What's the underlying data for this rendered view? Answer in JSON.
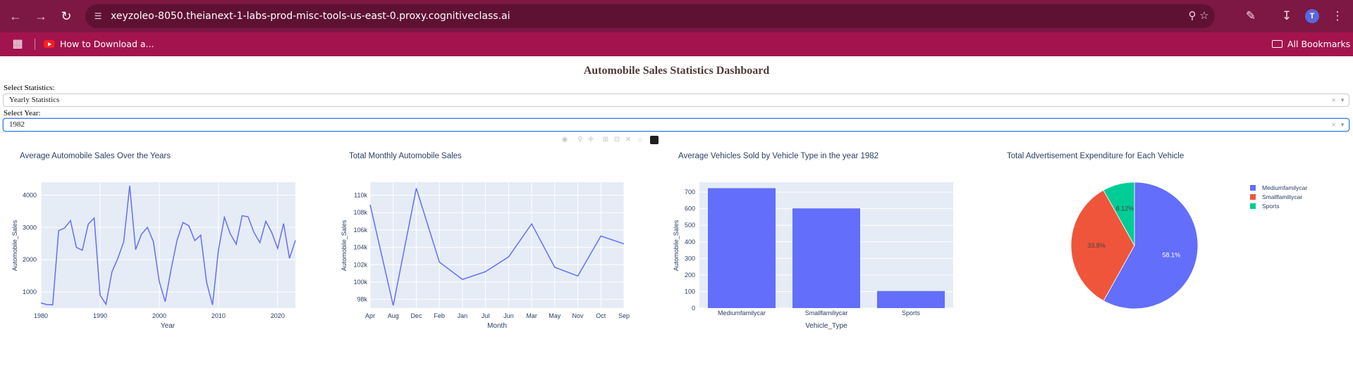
{
  "browser": {
    "url": "xeyzoleo-8050.theianext-1-labs-prod-misc-tools-us-east-0.proxy.cognitiveclass.ai",
    "profile_initial": "T",
    "bookmarks": [
      "How to Download a..."
    ],
    "all_bookmarks_label": "All Bookmarks",
    "icons": {
      "back": "back-arrow-icon",
      "forward": "forward-arrow-icon",
      "reload": "reload-icon",
      "site_info": "tune-icon",
      "zoom": "zoom-icon",
      "star": "star-icon",
      "extensions": "puzzle-icon",
      "download": "download-icon",
      "menu": "kebab-menu-icon"
    }
  },
  "dashboard": {
    "title": "Automobile Sales Statistics Dashboard",
    "statistics": {
      "label": "Select Statistics:",
      "value": "Yearly Statistics"
    },
    "year": {
      "label": "Select Year:",
      "value": "1982"
    }
  },
  "colors": {
    "plot_bg": "#e5ecf6",
    "series": "#636efa",
    "red": "#ef553b",
    "green": "#00cc96"
  },
  "chart_data": [
    {
      "type": "line",
      "title": "Average Automobile Sales Over the Years",
      "xlabel": "Year",
      "ylabel": "Automobile_Sales",
      "xticks": [
        "1980",
        "1990",
        "2000",
        "2010",
        "2020"
      ],
      "yticks": [
        "1000",
        "2000",
        "3000",
        "4000"
      ],
      "xlim": [
        1980,
        2023
      ],
      "ylim": [
        500,
        4400
      ],
      "x": [
        1980,
        1981,
        1982,
        1983,
        1984,
        1985,
        1986,
        1987,
        1988,
        1989,
        1990,
        1991,
        1992,
        1993,
        1994,
        1995,
        1996,
        1997,
        1998,
        1999,
        2000,
        2001,
        2002,
        2003,
        2004,
        2005,
        2006,
        2007,
        2008,
        2009,
        2010,
        2011,
        2012,
        2013,
        2014,
        2015,
        2016,
        2017,
        2018,
        2019,
        2020,
        2021,
        2022,
        2023
      ],
      "y": [
        660,
        610,
        600,
        2900,
        2980,
        3210,
        2380,
        2290,
        3100,
        3290,
        900,
        620,
        1620,
        2040,
        2560,
        4290,
        2310,
        2790,
        3000,
        2560,
        1320,
        700,
        1700,
        2600,
        3150,
        3050,
        2590,
        2760,
        1290,
        600,
        2300,
        3310,
        2800,
        2480,
        3360,
        3330,
        2840,
        2530,
        3190,
        2840,
        2350,
        3120,
        2040,
        2600
      ]
    },
    {
      "type": "line",
      "title": "Total Monthly Automobile Sales",
      "xlabel": "Month",
      "ylabel": "Automobile_Sales",
      "categories": [
        "Apr",
        "Aug",
        "Dec",
        "Feb",
        "Jan",
        "Jul",
        "Jun",
        "Mar",
        "May",
        "Nov",
        "Oct",
        "Sep"
      ],
      "yticks": [
        "98k",
        "100k",
        "102k",
        "104k",
        "106k",
        "108k",
        "110k"
      ],
      "ylim": [
        97000,
        111500
      ],
      "values": [
        108900,
        97300,
        110800,
        102300,
        100300,
        101200,
        102900,
        106700,
        101700,
        100700,
        105300,
        104400
      ]
    },
    {
      "type": "bar",
      "title": "Average Vehicles Sold by Vehicle Type in the year 1982",
      "xlabel": "Vehicle_Type",
      "ylabel": "Automobile_Sales",
      "categories": [
        "Mediumfamilycar",
        "Smallfamiliycar",
        "Sports"
      ],
      "yticks": [
        "0",
        "100",
        "200",
        "300",
        "400",
        "500",
        "600",
        "700"
      ],
      "ylim": [
        0,
        760
      ],
      "values": [
        724,
        602,
        103
      ]
    },
    {
      "type": "pie",
      "title": "Total Advertisement Expenditure for Each Vehicle",
      "labels": [
        "Mediumfamilycar",
        "Smallfamiliycar",
        "Sports"
      ],
      "values": [
        58.1,
        33.8,
        8.12
      ],
      "text": [
        "58.1%",
        "33.8%",
        "8.12%"
      ],
      "colors": [
        "#636efa",
        "#ef553b",
        "#00cc96"
      ],
      "legend_position": "right"
    }
  ]
}
